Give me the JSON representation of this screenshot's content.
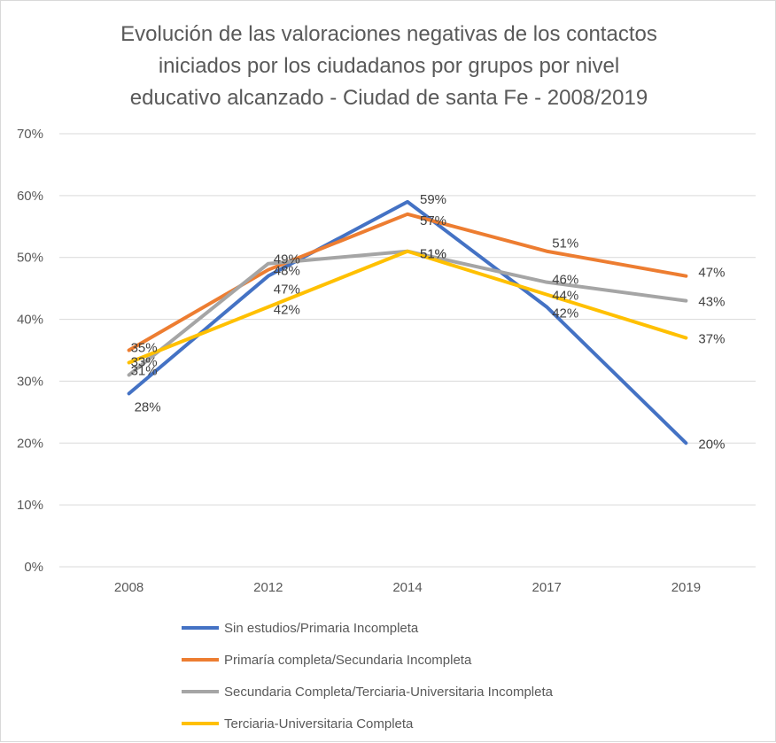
{
  "chart_data": {
    "type": "line",
    "title_lines": [
      "Evolución de las valoraciones negativas de los contactos",
      "iniciados por los ciudadanos por  grupos por nivel",
      "educativo alcanzado - Ciudad de santa Fe - 2008/2019"
    ],
    "xlabel": "",
    "ylabel": "",
    "categories": [
      "2008",
      "2012",
      "2014",
      "2017",
      "2019"
    ],
    "ylim": [
      0,
      70
    ],
    "yticks": [
      "0%",
      "10%",
      "20%",
      "30%",
      "40%",
      "50%",
      "60%",
      "70%"
    ],
    "grid": true,
    "legend_position": "bottom",
    "series": [
      {
        "name": "Sin estudios/Primaria Incompleta",
        "color": "#4472C4",
        "values": [
          28,
          47,
          59,
          42,
          20
        ],
        "labels": [
          "28%",
          "47%",
          "59%",
          "42%",
          "20%"
        ]
      },
      {
        "name": "Primaría completa/Secundaria Incompleta",
        "color": "#ED7D31",
        "values": [
          35,
          48,
          57,
          51,
          47
        ],
        "labels": [
          "35%",
          "48%",
          "57%",
          "51%",
          "47%"
        ]
      },
      {
        "name": "Secundaria Completa/Terciaria-Universitaria Incompleta",
        "color": "#A5A5A5",
        "values": [
          31,
          49,
          51,
          46,
          43
        ],
        "labels": [
          "31%",
          "49%",
          "51%",
          "46%",
          "43%"
        ]
      },
      {
        "name": "Terciaria-Universitaria Completa",
        "color": "#FFC000",
        "values": [
          33,
          42,
          51,
          44,
          37
        ],
        "labels": [
          "33%",
          "42%",
          "51%",
          "44%",
          "37%"
        ]
      }
    ]
  }
}
